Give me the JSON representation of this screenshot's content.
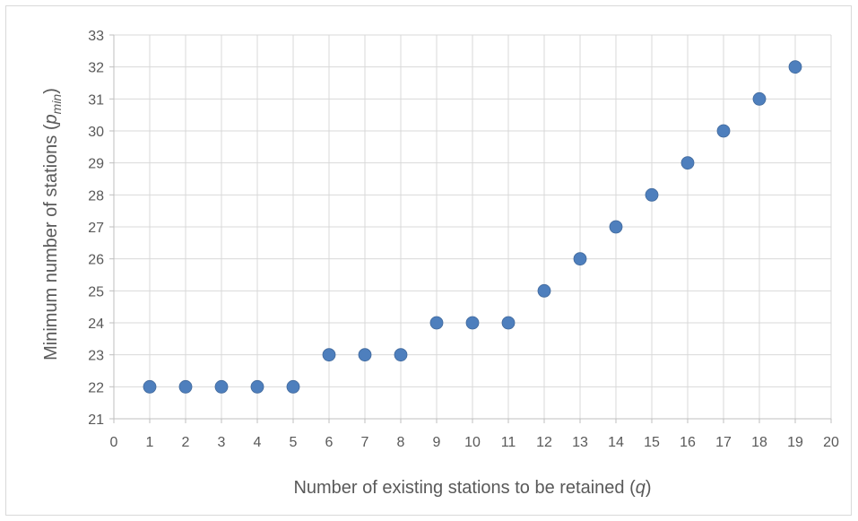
{
  "chart_data": {
    "type": "scatter",
    "title": "",
    "xlabel": {
      "main": "Number of existing stations to be retained (",
      "var": "q",
      "close": ")"
    },
    "ylabel": {
      "main": "Minimum number of stations (",
      "var": "p",
      "sub": "min",
      "close": ")"
    },
    "xlim": [
      0,
      20
    ],
    "ylim": [
      21,
      33
    ],
    "x_ticks": [
      0,
      1,
      2,
      3,
      4,
      5,
      6,
      7,
      8,
      9,
      10,
      11,
      12,
      13,
      14,
      15,
      16,
      17,
      18,
      19,
      20
    ],
    "y_ticks": [
      21,
      22,
      23,
      24,
      25,
      26,
      27,
      28,
      29,
      30,
      31,
      32,
      33
    ],
    "grid": true,
    "legend": "none",
    "marker_color": "#4e7fbd",
    "points": [
      {
        "x": 1,
        "y": 22
      },
      {
        "x": 2,
        "y": 22
      },
      {
        "x": 3,
        "y": 22
      },
      {
        "x": 4,
        "y": 22
      },
      {
        "x": 5,
        "y": 22
      },
      {
        "x": 6,
        "y": 23
      },
      {
        "x": 7,
        "y": 23
      },
      {
        "x": 8,
        "y": 23
      },
      {
        "x": 9,
        "y": 24
      },
      {
        "x": 10,
        "y": 24
      },
      {
        "x": 11,
        "y": 24
      },
      {
        "x": 12,
        "y": 25
      },
      {
        "x": 13,
        "y": 26
      },
      {
        "x": 14,
        "y": 27
      },
      {
        "x": 15,
        "y": 28
      },
      {
        "x": 16,
        "y": 29
      },
      {
        "x": 17,
        "y": 30
      },
      {
        "x": 18,
        "y": 31
      },
      {
        "x": 19,
        "y": 32
      }
    ]
  }
}
